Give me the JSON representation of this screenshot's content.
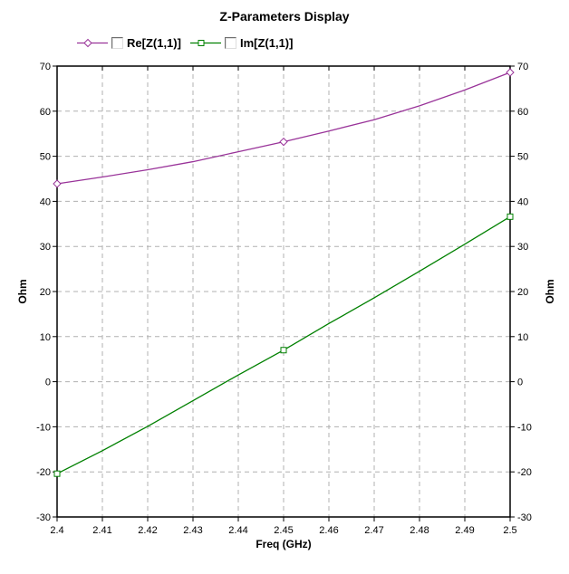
{
  "chart_data": {
    "type": "line",
    "title": "Z-Parameters Display",
    "xlabel": "Freq (GHz)",
    "ylabel_left": "Ohm",
    "ylabel_right": "Ohm",
    "xlim": [
      2.4,
      2.5
    ],
    "ylim": [
      -30,
      70
    ],
    "x_tick_values": [
      2.4,
      2.41,
      2.42,
      2.43,
      2.44,
      2.45,
      2.46,
      2.47,
      2.48,
      2.49,
      2.5
    ],
    "x_tick_labels": [
      "2.4",
      "2.41",
      "2.42",
      "2.43",
      "2.44",
      "2.45",
      "2.46",
      "2.47",
      "2.48",
      "2.49",
      "2.5"
    ],
    "y_ticks": [
      -30,
      -20,
      -10,
      0,
      10,
      20,
      30,
      40,
      50,
      60,
      70
    ],
    "grid": "dashed",
    "legend_position": "top",
    "x": [
      2.4,
      2.41,
      2.42,
      2.43,
      2.44,
      2.45,
      2.46,
      2.47,
      2.48,
      2.49,
      2.5
    ],
    "series": [
      {
        "name": "Re[Z(1,1)]",
        "color": "#993399",
        "marker": "diamond",
        "marker_x": [
          2.4,
          2.45,
          2.5
        ],
        "values": [
          43.9,
          45.4,
          47.0,
          48.8,
          51.0,
          53.2,
          55.6,
          58.1,
          61.2,
          64.7,
          68.6
        ]
      },
      {
        "name": "Im[Z(1,1)]",
        "color": "#008000",
        "marker": "square",
        "marker_x": [
          2.4,
          2.45,
          2.5
        ],
        "values": [
          -20.4,
          -15.3,
          -9.9,
          -4.2,
          1.5,
          7.0,
          12.9,
          18.6,
          24.5,
          30.5,
          36.6
        ]
      }
    ],
    "colors": {
      "grid": "#b0b0b0",
      "axis": "#000000",
      "background": "#ffffff"
    }
  }
}
